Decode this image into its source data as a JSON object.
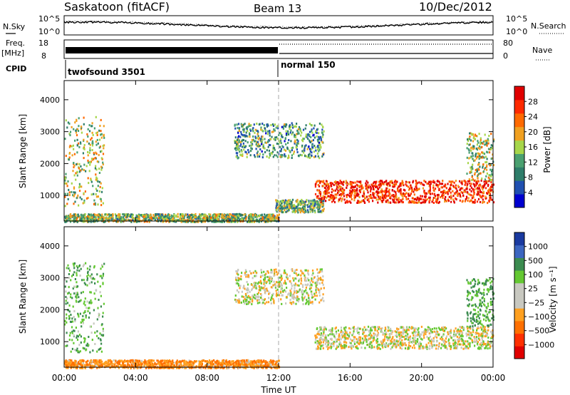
{
  "header": {
    "station": "Saskatoon (fitACF)",
    "beam": "Beam 13",
    "date": "10/Dec/2012"
  },
  "strips": {
    "nsky_label": "N.Sky",
    "nsky_ticks": [
      "10^5",
      "10^0"
    ],
    "nsearch_label": "N.Search",
    "freq_label": "Freq.",
    "freq_unit": "[MHz]",
    "freq_ticks": [
      "18",
      "8"
    ],
    "nave_label": "Nave",
    "nave_ticks": [
      "80",
      "0"
    ],
    "cpid_label": "CPID",
    "cpid_segments": [
      {
        "name": "twofsound 3501",
        "start_hour": 0,
        "end_hour": 12
      },
      {
        "name": "normal 150",
        "start_hour": 12,
        "end_hour": 24
      }
    ]
  },
  "colors": {
    "power_scale": [
      "#0000d0",
      "#2050b0",
      "#2e7d6a",
      "#4aa070",
      "#a6d64a",
      "#f0a020",
      "#ff6a00",
      "#ff2a00",
      "#e00000"
    ],
    "velocity_scale": [
      "#1a3aa0",
      "#3c66c0",
      "#3c8c50",
      "#64c832",
      "#c8c8c0",
      "#c8c8c0",
      "#ffa020",
      "#ff7000",
      "#ff3000",
      "#e00000"
    ],
    "ground_scatter": "#c8c8c0"
  },
  "chart_data": [
    {
      "type": "heatmap",
      "name": "power",
      "xlabel": "",
      "ylabel": "Slant Range [km]",
      "xlim": [
        0,
        24
      ],
      "ylim": [
        200,
        4600
      ],
      "yticks": [
        "1000",
        "2000",
        "3000",
        "4000"
      ],
      "colorbar": {
        "label": "Power [dB]",
        "ticks": [
          "4",
          "8",
          "12",
          "16",
          "20",
          "24",
          "28"
        ],
        "range": [
          0,
          32
        ]
      },
      "features": [
        {
          "start_hour": 0.0,
          "end_hour": 2.2,
          "range_km": [
            700,
            3500
          ],
          "level": 0.5
        },
        {
          "start_hour": 0.0,
          "end_hour": 12.0,
          "range_km": [
            200,
            450
          ],
          "level": 0.45
        },
        {
          "start_hour": 9.5,
          "end_hour": 14.5,
          "range_km": [
            2200,
            3300
          ],
          "level": 0.35
        },
        {
          "start_hour": 14.0,
          "end_hour": 24.0,
          "range_km": [
            800,
            1500
          ],
          "level": 0.85
        },
        {
          "start_hour": 11.8,
          "end_hour": 14.5,
          "range_km": [
            500,
            900
          ],
          "level": 0.4
        },
        {
          "start_hour": 22.5,
          "end_hour": 24.0,
          "range_km": [
            1500,
            3000
          ],
          "level": 0.5
        }
      ]
    },
    {
      "type": "heatmap",
      "name": "velocity",
      "xlabel": "Time UT",
      "ylabel": "Slant Range [km]",
      "xlim": [
        0,
        24
      ],
      "ylim": [
        200,
        4600
      ],
      "xticks": [
        "00:00",
        "04:00",
        "08:00",
        "12:00",
        "16:00",
        "20:00",
        "00:00"
      ],
      "yticks": [
        "1000",
        "2000",
        "3000",
        "4000"
      ],
      "colorbar": {
        "label": "Velocity [m s⁻¹]",
        "ticks": [
          "1000",
          "500",
          "100",
          "25",
          "−25",
          "−100",
          "−500",
          "−1000"
        ],
        "range": [
          -1000,
          1000
        ]
      },
      "features": [
        {
          "start_hour": 0.0,
          "end_hour": 2.2,
          "range_km": [
            700,
            3500
          ],
          "value": 80
        },
        {
          "start_hour": 0.0,
          "end_hour": 12.0,
          "range_km": [
            200,
            450
          ],
          "value": -90
        },
        {
          "start_hour": 9.5,
          "end_hour": 14.5,
          "range_km": [
            2200,
            3300
          ],
          "value": 0
        },
        {
          "start_hour": 14.0,
          "end_hour": 24.0,
          "range_km": [
            800,
            1500
          ],
          "value": 0
        },
        {
          "start_hour": 22.5,
          "end_hour": 24.0,
          "range_km": [
            1500,
            3000
          ],
          "value": 120
        }
      ]
    }
  ]
}
